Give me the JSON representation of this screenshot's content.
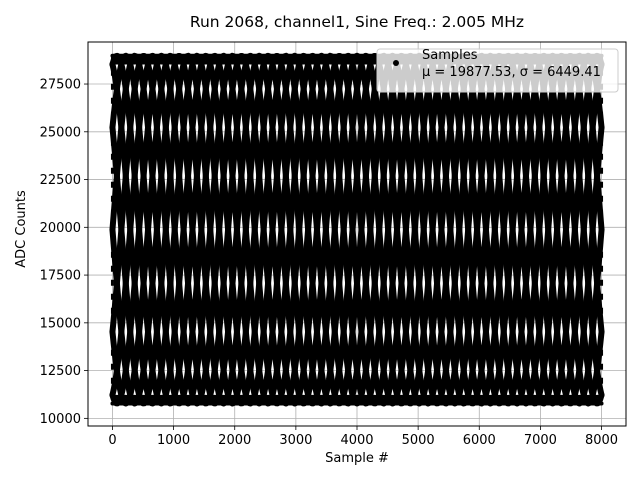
{
  "chart_data": {
    "type": "scatter",
    "title": "Run 2068, channel1, Sine Freq.: 2.005 MHz",
    "xlabel": "Sample #",
    "ylabel": "ADC Counts",
    "xlim": [
      -400,
      8400
    ],
    "ylim": [
      9600,
      29700
    ],
    "xticks": [
      0,
      1000,
      2000,
      3000,
      4000,
      5000,
      6000,
      7000,
      8000
    ],
    "yticks": [
      10000,
      12500,
      15000,
      17500,
      20000,
      22500,
      25000,
      27500
    ],
    "grid": true,
    "legend_position": "top-right",
    "series": [
      {
        "name": "Samples",
        "marker": "circle",
        "color": "#000000",
        "n_samples": 8000,
        "amplitude": 9100,
        "offset": 19877.53,
        "waveform": "sine",
        "aliased_envelope_crossings_approx": 12
      }
    ],
    "legend_entries": {
      "label": "Samples",
      "stats": "μ = 19877.53, σ = 6449.41"
    }
  }
}
